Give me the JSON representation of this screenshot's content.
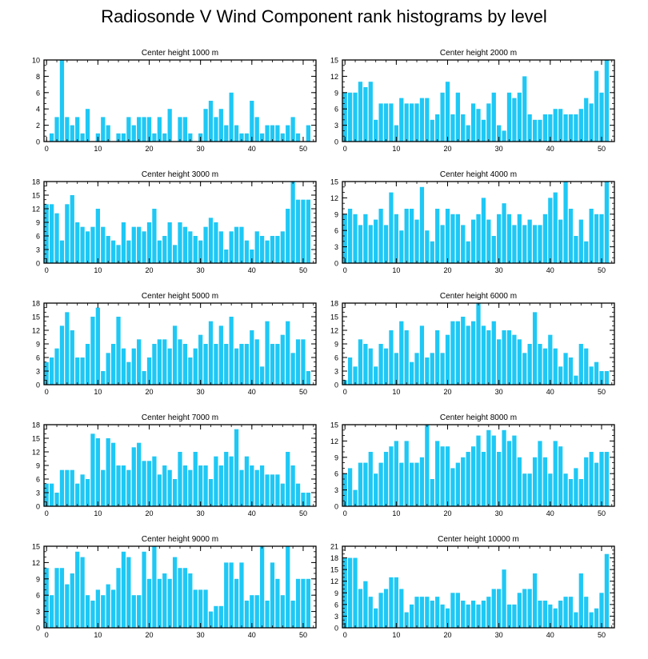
{
  "title": "Radiosonde V Wind Component rank histograms by level",
  "colors": {
    "bar": "#1EC8F5",
    "frame": "#000000",
    "background": "#ffffff"
  },
  "chart_data": [
    {
      "type": "bar",
      "title": "Center height 1000 m",
      "xticks": [
        0,
        10,
        20,
        30,
        40,
        50
      ],
      "ylim": [
        0,
        10
      ],
      "yticks": [
        0,
        2,
        4,
        6,
        8,
        10
      ],
      "x": [
        0,
        1,
        2,
        3,
        4,
        5,
        6,
        7,
        8,
        9,
        10,
        11,
        12,
        13,
        14,
        15,
        16,
        17,
        18,
        19,
        20,
        21,
        22,
        23,
        24,
        25,
        26,
        27,
        28,
        29,
        30,
        31,
        32,
        33,
        34,
        35,
        36,
        37,
        38,
        39,
        40,
        41,
        42,
        43,
        44,
        45,
        46,
        47,
        48,
        49,
        50,
        51
      ],
      "values": [
        0,
        1,
        3,
        10,
        3,
        2,
        3,
        1,
        4,
        0,
        1,
        3,
        2,
        0,
        1,
        1,
        3,
        2,
        3,
        3,
        3,
        1,
        3,
        1,
        4,
        0,
        3,
        3,
        1,
        0,
        1,
        4,
        5,
        3,
        4,
        2,
        6,
        2,
        1,
        1,
        5,
        3,
        1,
        2,
        2,
        2,
        1,
        2,
        3,
        1,
        0,
        2
      ]
    },
    {
      "type": "bar",
      "title": "Center height 2000 m",
      "xticks": [
        0,
        10,
        20,
        30,
        40,
        50
      ],
      "ylim": [
        0,
        15
      ],
      "yticks": [
        0,
        3,
        6,
        9,
        12,
        15
      ],
      "x": [
        0,
        1,
        2,
        3,
        4,
        5,
        6,
        7,
        8,
        9,
        10,
        11,
        12,
        13,
        14,
        15,
        16,
        17,
        18,
        19,
        20,
        21,
        22,
        23,
        24,
        25,
        26,
        27,
        28,
        29,
        30,
        31,
        32,
        33,
        34,
        35,
        36,
        37,
        38,
        39,
        40,
        41,
        42,
        43,
        44,
        45,
        46,
        47,
        48,
        49,
        50,
        51
      ],
      "values": [
        9,
        9,
        9,
        11,
        10,
        11,
        4,
        7,
        7,
        7,
        3,
        8,
        7,
        7,
        7,
        8,
        8,
        4,
        5,
        9,
        11,
        5,
        9,
        5,
        3,
        7,
        6,
        4,
        7,
        9,
        3,
        2,
        9,
        8,
        9,
        12,
        5,
        4,
        4,
        5,
        5,
        6,
        6,
        5,
        5,
        5,
        6,
        8,
        7,
        13,
        9,
        15
      ]
    },
    {
      "type": "bar",
      "title": "Center height 3000 m",
      "xticks": [
        0,
        10,
        20,
        30,
        40,
        50
      ],
      "ylim": [
        0,
        18
      ],
      "yticks": [
        0,
        3,
        6,
        9,
        12,
        15,
        18
      ],
      "x": [
        0,
        1,
        2,
        3,
        4,
        5,
        6,
        7,
        8,
        9,
        10,
        11,
        12,
        13,
        14,
        15,
        16,
        17,
        18,
        19,
        20,
        21,
        22,
        23,
        24,
        25,
        26,
        27,
        28,
        29,
        30,
        31,
        32,
        33,
        34,
        35,
        36,
        37,
        38,
        39,
        40,
        41,
        42,
        43,
        44,
        45,
        46,
        47,
        48,
        49,
        50,
        51
      ],
      "values": [
        13,
        13,
        11,
        5,
        13,
        15,
        9,
        8,
        7,
        8,
        12,
        8,
        6,
        5,
        4,
        9,
        5,
        8,
        8,
        7,
        9,
        12,
        5,
        6,
        9,
        4,
        9,
        8,
        7,
        6,
        5,
        8,
        10,
        9,
        7,
        3,
        7,
        8,
        8,
        5,
        3,
        7,
        6,
        5,
        6,
        6,
        7,
        12,
        18,
        14,
        14,
        14
      ]
    },
    {
      "type": "bar",
      "title": "Center height 4000 m",
      "xticks": [
        0,
        10,
        20,
        30,
        40,
        50
      ],
      "ylim": [
        0,
        15
      ],
      "yticks": [
        0,
        3,
        6,
        9,
        12,
        15
      ],
      "x": [
        0,
        1,
        2,
        3,
        4,
        5,
        6,
        7,
        8,
        9,
        10,
        11,
        12,
        13,
        14,
        15,
        16,
        17,
        18,
        19,
        20,
        21,
        22,
        23,
        24,
        25,
        26,
        27,
        28,
        29,
        30,
        31,
        32,
        33,
        34,
        35,
        36,
        37,
        38,
        39,
        40,
        41,
        42,
        43,
        44,
        45,
        46,
        47,
        48,
        49,
        50,
        51
      ],
      "values": [
        9,
        10,
        9,
        7,
        9,
        7,
        8,
        10,
        7,
        13,
        9,
        6,
        10,
        10,
        8,
        14,
        6,
        4,
        10,
        7,
        10,
        9,
        9,
        7,
        4,
        8,
        9,
        12,
        8,
        5,
        9,
        11,
        9,
        7,
        9,
        7,
        8,
        7,
        7,
        9,
        12,
        13,
        8,
        15,
        10,
        5,
        8,
        4,
        10,
        9,
        9,
        15
      ]
    },
    {
      "type": "bar",
      "title": "Center height 5000 m",
      "xticks": [
        0,
        10,
        20,
        30,
        40,
        50
      ],
      "ylim": [
        0,
        18
      ],
      "yticks": [
        0,
        3,
        6,
        9,
        12,
        15,
        18
      ],
      "x": [
        0,
        1,
        2,
        3,
        4,
        5,
        6,
        7,
        8,
        9,
        10,
        11,
        12,
        13,
        14,
        15,
        16,
        17,
        18,
        19,
        20,
        21,
        22,
        23,
        24,
        25,
        26,
        27,
        28,
        29,
        30,
        31,
        32,
        33,
        34,
        35,
        36,
        37,
        38,
        39,
        40,
        41,
        42,
        43,
        44,
        45,
        46,
        47,
        48,
        49,
        50,
        51
      ],
      "values": [
        5,
        6,
        8,
        13,
        16,
        12,
        6,
        6,
        9,
        15,
        17,
        3,
        7,
        9,
        15,
        8,
        5,
        8,
        10,
        3,
        6,
        9,
        10,
        10,
        8,
        13,
        10,
        9,
        6,
        8,
        11,
        9,
        14,
        9,
        13,
        9,
        15,
        8,
        9,
        9,
        12,
        10,
        4,
        14,
        9,
        9,
        11,
        14,
        7,
        10,
        10,
        3
      ]
    },
    {
      "type": "bar",
      "title": "Center height 6000 m",
      "xticks": [
        0,
        10,
        20,
        30,
        40,
        50
      ],
      "ylim": [
        0,
        18
      ],
      "yticks": [
        0,
        3,
        6,
        9,
        12,
        15,
        18
      ],
      "x": [
        0,
        1,
        2,
        3,
        4,
        5,
        6,
        7,
        8,
        9,
        10,
        11,
        12,
        13,
        14,
        15,
        16,
        17,
        18,
        19,
        20,
        21,
        22,
        23,
        24,
        25,
        26,
        27,
        28,
        29,
        30,
        31,
        32,
        33,
        34,
        35,
        36,
        37,
        38,
        39,
        40,
        41,
        42,
        43,
        44,
        45,
        46,
        47,
        48,
        49,
        50,
        51
      ],
      "values": [
        1,
        6,
        4,
        10,
        9,
        8,
        4,
        9,
        8,
        12,
        7,
        14,
        12,
        5,
        7,
        13,
        6,
        7,
        12,
        7,
        11,
        14,
        14,
        15,
        13,
        14,
        18,
        13,
        12,
        14,
        10,
        12,
        12,
        11,
        10,
        7,
        9,
        16,
        9,
        8,
        11,
        8,
        4,
        7,
        6,
        2,
        9,
        8,
        4,
        5,
        3,
        3
      ]
    },
    {
      "type": "bar",
      "title": "Center height 7000 m",
      "xticks": [
        0,
        10,
        20,
        30,
        40,
        50
      ],
      "ylim": [
        0,
        18
      ],
      "yticks": [
        0,
        3,
        6,
        9,
        12,
        15,
        18
      ],
      "x": [
        0,
        1,
        2,
        3,
        4,
        5,
        6,
        7,
        8,
        9,
        10,
        11,
        12,
        13,
        14,
        15,
        16,
        17,
        18,
        19,
        20,
        21,
        22,
        23,
        24,
        25,
        26,
        27,
        28,
        29,
        30,
        31,
        32,
        33,
        34,
        35,
        36,
        37,
        38,
        39,
        40,
        41,
        42,
        43,
        44,
        45,
        46,
        47,
        48,
        49,
        50,
        51
      ],
      "values": [
        5,
        5,
        3,
        8,
        8,
        8,
        5,
        7,
        6,
        16,
        15,
        8,
        15,
        14,
        9,
        9,
        8,
        13,
        14,
        10,
        10,
        11,
        7,
        9,
        8,
        6,
        12,
        9,
        8,
        12,
        9,
        9,
        6,
        11,
        9,
        12,
        11,
        17,
        8,
        11,
        9,
        8,
        9,
        7,
        7,
        7,
        5,
        12,
        9,
        5,
        3,
        3
      ]
    },
    {
      "type": "bar",
      "title": "Center height 8000 m",
      "xticks": [
        0,
        10,
        20,
        30,
        40,
        50
      ],
      "ylim": [
        0,
        15
      ],
      "yticks": [
        0,
        3,
        6,
        9,
        12,
        15
      ],
      "x": [
        0,
        1,
        2,
        3,
        4,
        5,
        6,
        7,
        8,
        9,
        10,
        11,
        12,
        13,
        14,
        15,
        16,
        17,
        18,
        19,
        20,
        21,
        22,
        23,
        24,
        25,
        26,
        27,
        28,
        29,
        30,
        31,
        32,
        33,
        34,
        35,
        36,
        37,
        38,
        39,
        40,
        41,
        42,
        43,
        44,
        45,
        46,
        47,
        48,
        49,
        50,
        51
      ],
      "values": [
        6,
        7,
        3,
        8,
        8,
        10,
        6,
        8,
        10,
        11,
        12,
        8,
        12,
        8,
        8,
        9,
        15,
        5,
        12,
        11,
        11,
        7,
        8,
        9,
        10,
        11,
        13,
        10,
        14,
        13,
        10,
        14,
        12,
        13,
        9,
        6,
        6,
        9,
        12,
        9,
        6,
        12,
        11,
        6,
        5,
        7,
        5,
        9,
        10,
        8,
        10,
        10
      ]
    },
    {
      "type": "bar",
      "title": "Center height 9000 m",
      "xticks": [
        0,
        10,
        20,
        30,
        40,
        50
      ],
      "ylim": [
        0,
        15
      ],
      "yticks": [
        0,
        3,
        6,
        9,
        12,
        15
      ],
      "x": [
        0,
        1,
        2,
        3,
        4,
        5,
        6,
        7,
        8,
        9,
        10,
        11,
        12,
        13,
        14,
        15,
        16,
        17,
        18,
        19,
        20,
        21,
        22,
        23,
        24,
        25,
        26,
        27,
        28,
        29,
        30,
        31,
        32,
        33,
        34,
        35,
        36,
        37,
        38,
        39,
        40,
        41,
        42,
        43,
        44,
        45,
        46,
        47,
        48,
        49,
        50,
        51
      ],
      "values": [
        11,
        6,
        11,
        11,
        8,
        10,
        14,
        13,
        6,
        5,
        7,
        6,
        8,
        7,
        11,
        14,
        13,
        6,
        6,
        14,
        9,
        15,
        9,
        10,
        9,
        13,
        11,
        11,
        10,
        7,
        7,
        7,
        3,
        4,
        4,
        12,
        12,
        9,
        12,
        5,
        6,
        6,
        15,
        5,
        12,
        9,
        6,
        15,
        5,
        9,
        9,
        9
      ]
    },
    {
      "type": "bar",
      "title": "Center height 10000 m",
      "xticks": [
        0,
        10,
        20,
        30,
        40,
        50
      ],
      "ylim": [
        0,
        21
      ],
      "yticks": [
        0,
        3,
        6,
        9,
        12,
        15,
        18,
        21
      ],
      "x": [
        0,
        1,
        2,
        3,
        4,
        5,
        6,
        7,
        8,
        9,
        10,
        11,
        12,
        13,
        14,
        15,
        16,
        17,
        18,
        19,
        20,
        21,
        22,
        23,
        24,
        25,
        26,
        27,
        28,
        29,
        30,
        31,
        32,
        33,
        34,
        35,
        36,
        37,
        38,
        39,
        40,
        41,
        42,
        43,
        44,
        45,
        46,
        47,
        48,
        49,
        50,
        51
      ],
      "values": [
        18,
        18,
        18,
        10,
        12,
        8,
        5,
        9,
        10,
        13,
        13,
        10,
        4,
        6,
        8,
        8,
        8,
        7,
        8,
        6,
        5,
        9,
        9,
        7,
        6,
        7,
        6,
        7,
        8,
        10,
        10,
        15,
        6,
        6,
        9,
        10,
        10,
        14,
        7,
        7,
        6,
        5,
        7,
        8,
        8,
        4,
        14,
        8,
        4,
        5,
        9,
        19
      ]
    }
  ]
}
